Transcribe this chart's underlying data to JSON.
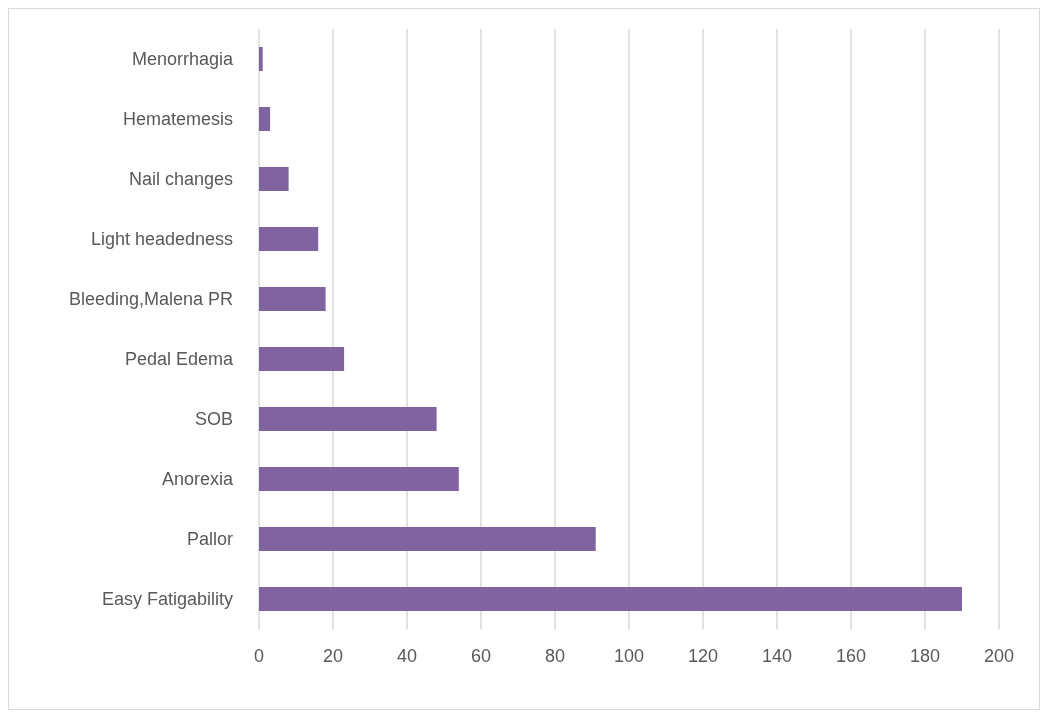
{
  "chart_data": {
    "type": "bar",
    "orientation": "horizontal",
    "categories": [
      "Menorrhagia",
      "Hematemesis",
      "Nail changes",
      "Light headedness",
      "Bleeding,Malena PR",
      "Pedal Edema",
      "SOB",
      "Anorexia",
      "Pallor",
      "Easy Fatigability"
    ],
    "values": [
      1,
      3,
      8,
      16,
      18,
      23,
      48,
      54,
      91,
      190
    ],
    "color": "#8064a2",
    "xlim": [
      0,
      200
    ],
    "xticks": [
      0,
      20,
      40,
      60,
      80,
      100,
      120,
      140,
      160,
      180,
      200
    ],
    "grid": "x"
  }
}
